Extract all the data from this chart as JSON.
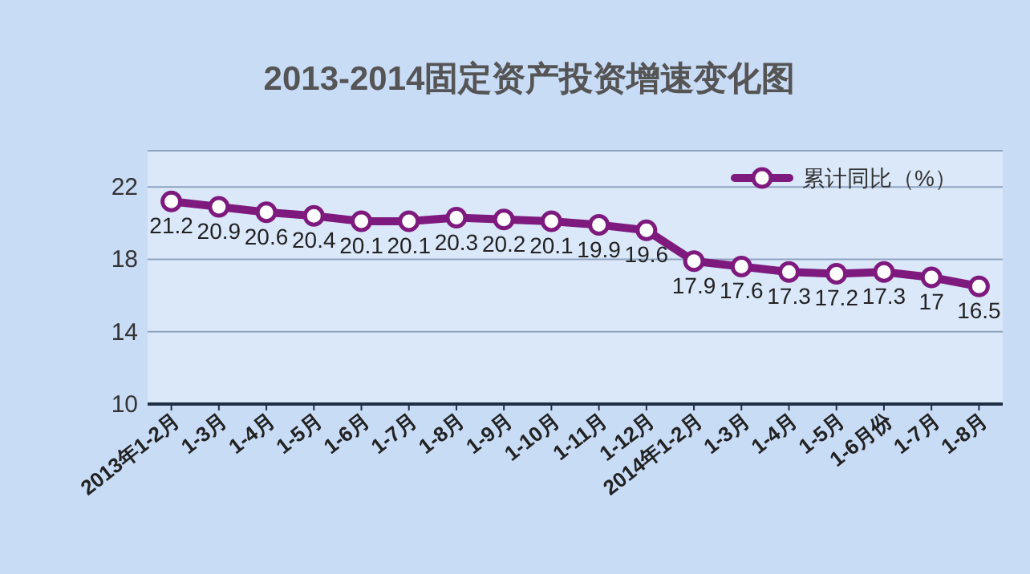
{
  "chart_data": {
    "type": "line",
    "title": "2013-2014固定资产投资增速变化图",
    "categories": [
      "2013年1-2月",
      "1-3月",
      "1-4月",
      "1-5月",
      "1-6月",
      "1-7月",
      "1-8月",
      "1-9月",
      "1-10月",
      "1-11月",
      "1-12月",
      "2014年1-2月",
      "1-3月",
      "1-4月",
      "1-5月",
      "1-6月份",
      "1-7月",
      "1-8月"
    ],
    "series": [
      {
        "name": "累计同比（%）",
        "color": "#7e1a7e",
        "values": [
          21.2,
          20.9,
          20.6,
          20.4,
          20.1,
          20.1,
          20.3,
          20.2,
          20.1,
          19.9,
          19.6,
          17.9,
          17.6,
          17.3,
          17.2,
          17.3,
          17,
          16.5
        ]
      }
    ],
    "ylim": [
      10,
      24
    ],
    "yticks": [
      10,
      14,
      18,
      22,
      {
        "value": 24,
        "label": null
      }
    ],
    "grid": "y",
    "legend": "top right",
    "marker": "circle",
    "line_style": "solid",
    "data_labels": true
  }
}
